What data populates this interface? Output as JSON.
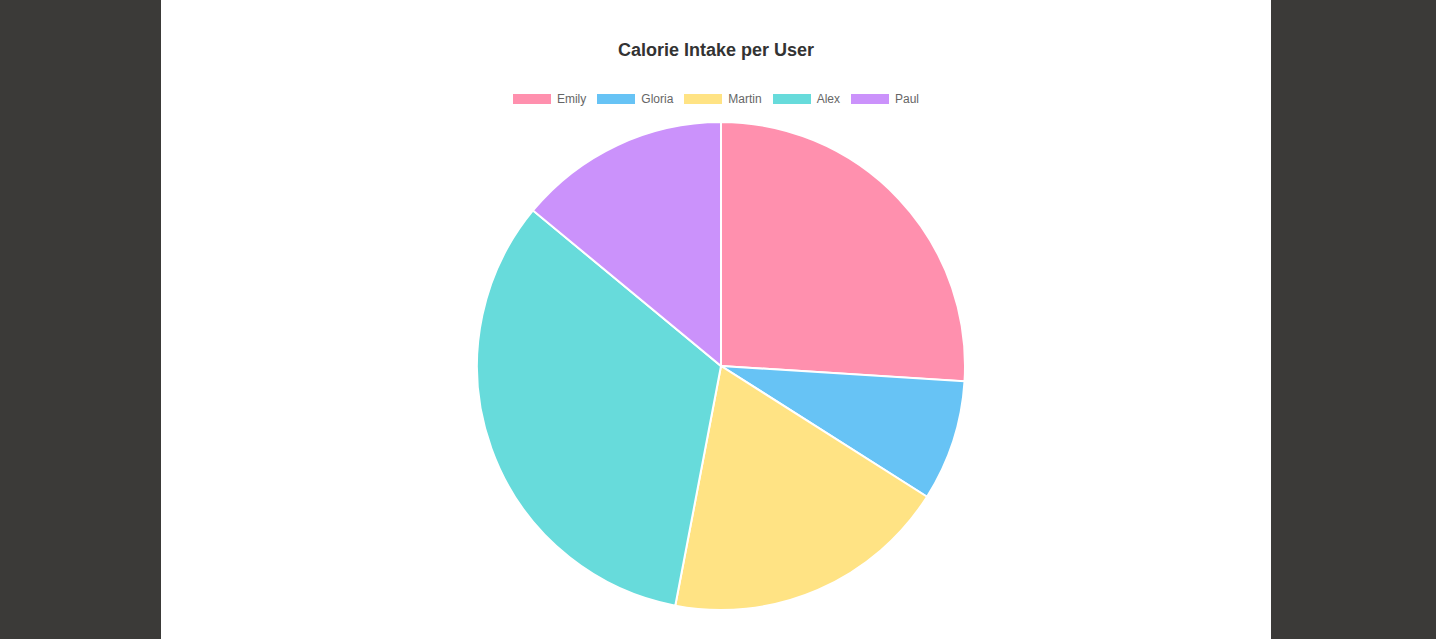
{
  "chart_data": {
    "type": "pie",
    "title": "Calorie Intake per User",
    "categories": [
      "Emily",
      "Gloria",
      "Martin",
      "Alex",
      "Paul"
    ],
    "values": [
      26,
      8,
      19,
      33,
      14
    ],
    "colors": [
      "#ff90ae",
      "#67c3f5",
      "#ffe384",
      "#67dbdb",
      "#cb92fb"
    ],
    "legend": "top"
  }
}
